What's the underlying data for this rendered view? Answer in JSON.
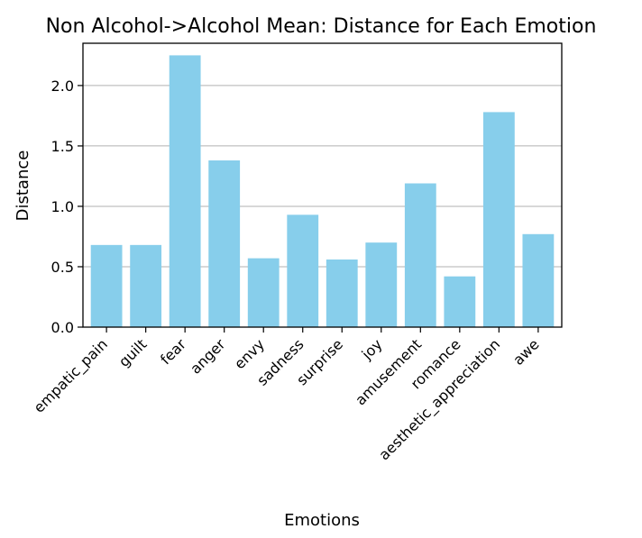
{
  "chart_data": {
    "type": "bar",
    "title": "Non Alcohol->Alcohol Mean: Distance for Each Emotion",
    "xlabel": "Emotions",
    "ylabel": "Distance",
    "categories": [
      "empatic_pain",
      "guilt",
      "fear",
      "anger",
      "envy",
      "sadness",
      "surprise",
      "joy",
      "amusement",
      "romance",
      "aesthetic_appreciation",
      "awe"
    ],
    "values": [
      0.68,
      0.68,
      2.25,
      1.38,
      0.57,
      0.93,
      0.56,
      0.7,
      1.19,
      0.42,
      1.78,
      0.77
    ],
    "ylim": [
      0,
      2.35
    ],
    "yticks": [
      "0.0",
      "0.5",
      "1.0",
      "1.5",
      "2.0"
    ],
    "grid": "y",
    "bar_color": "#87CEEB"
  }
}
